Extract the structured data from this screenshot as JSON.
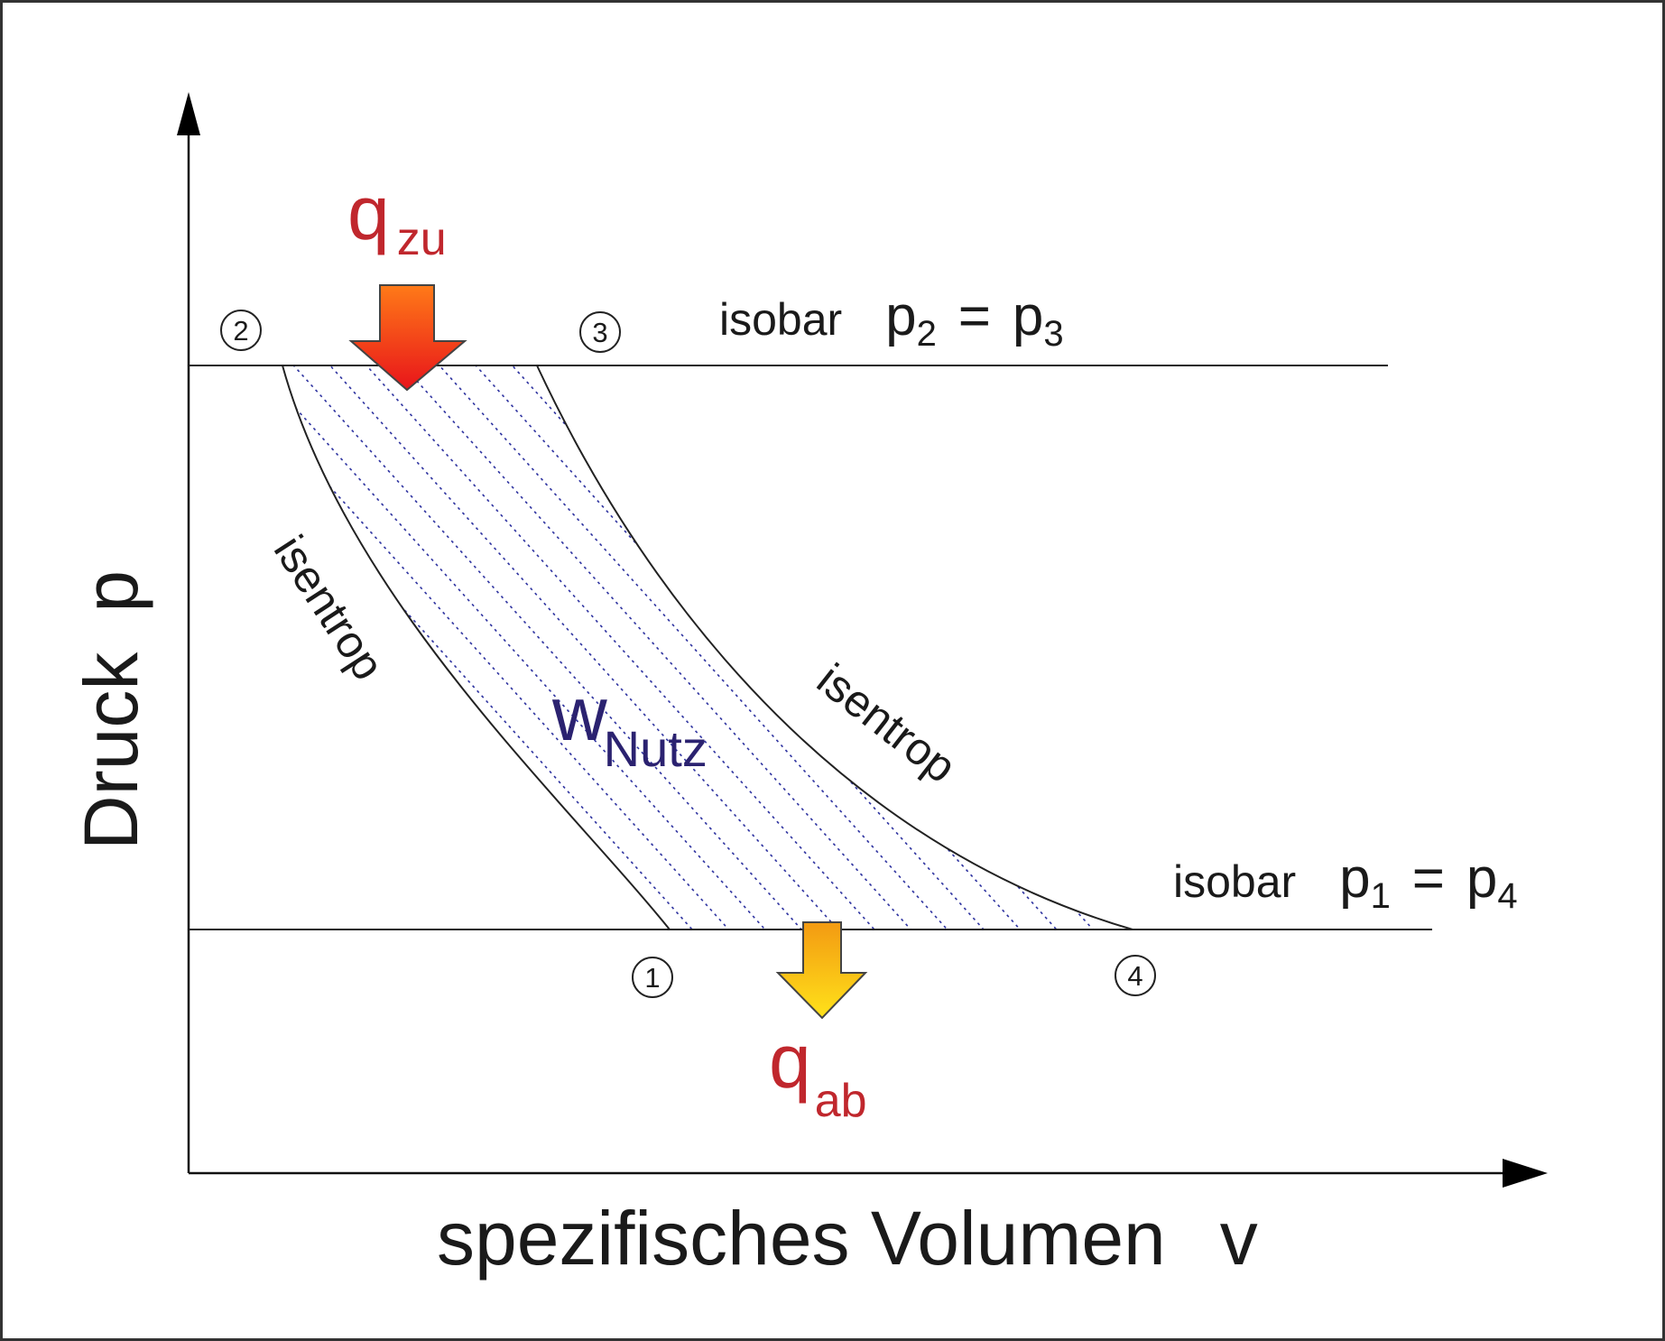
{
  "diagram": {
    "axes": {
      "y_label": "Druck",
      "y_symbol": "p",
      "x_label": "spezifisches Volumen",
      "x_symbol": "v"
    },
    "states": [
      {
        "id": "2",
        "symbol": "②"
      },
      {
        "id": "3",
        "symbol": "③"
      },
      {
        "id": "1",
        "symbol": "①"
      },
      {
        "id": "4",
        "symbol": "④"
      }
    ],
    "isobar_high": {
      "label": "isobar",
      "lhs": "p",
      "lhs_sub": "2",
      "eq": "=",
      "rhs": "p",
      "rhs_sub": "3"
    },
    "isobar_low": {
      "label": "isobar",
      "lhs": "p",
      "lhs_sub": "1",
      "eq": "=",
      "rhs": "p",
      "rhs_sub": "4"
    },
    "isentrop_left": "isentrop",
    "isentrop_right": "isentrop",
    "heat_in": {
      "symbol": "q",
      "sub": "zu"
    },
    "heat_out": {
      "symbol": "q",
      "sub": "ab"
    },
    "work": {
      "symbol": "w",
      "sub": "Nutz"
    },
    "colors": {
      "heat_label": "#c0272d",
      "work_label": "#2b2270",
      "hatch": "#2a2f9e",
      "arrow_in_top": "#ff7a18",
      "arrow_in_bottom": "#e8141a",
      "arrow_out_top": "#f39a12",
      "arrow_out_bottom": "#ffe21a"
    }
  }
}
